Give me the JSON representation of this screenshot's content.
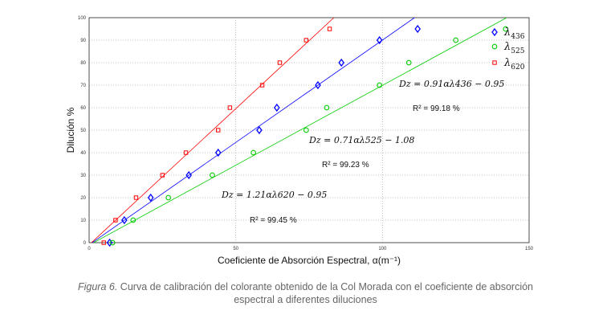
{
  "chart_data": {
    "type": "scatter",
    "xlabel": "Coeficiente de Absorción Espectral, α(m⁻¹)",
    "ylabel": "Dilución %",
    "xlim": [
      0,
      150
    ],
    "ylim": [
      0,
      100
    ],
    "x_ticks": [
      0,
      50,
      100,
      150
    ],
    "y_ticks": [
      0,
      10,
      20,
      30,
      40,
      50,
      60,
      70,
      80,
      90,
      100
    ],
    "grid": true,
    "legend_position": "top-right",
    "series": [
      {
        "name": "λ436",
        "name_main": "λ",
        "name_sub": "436",
        "marker": "diamond",
        "color": "#0000ff",
        "points": [
          [
            7,
            0
          ],
          [
            12,
            10
          ],
          [
            21,
            20
          ],
          [
            34,
            30
          ],
          [
            44,
            40
          ],
          [
            58,
            50
          ],
          [
            64,
            60
          ],
          [
            78,
            70
          ],
          [
            86,
            80
          ],
          [
            99,
            90
          ],
          [
            112,
            95
          ]
        ],
        "fit": {
          "slope": 0.91,
          "intercept": -0.95
        },
        "equation": "Dz = 0.91αλ436 − 0.95",
        "r2": "R² = 99.18 %"
      },
      {
        "name": "λ525",
        "name_main": "λ",
        "name_sub": "525",
        "marker": "circle",
        "color": "#00cc00",
        "points": [
          [
            8,
            0
          ],
          [
            15,
            10
          ],
          [
            27,
            20
          ],
          [
            42,
            30
          ],
          [
            56,
            40
          ],
          [
            74,
            50
          ],
          [
            81,
            60
          ],
          [
            99,
            70
          ],
          [
            109,
            80
          ],
          [
            125,
            90
          ],
          [
            142,
            95
          ]
        ],
        "fit": {
          "slope": 0.71,
          "intercept": -1.08
        },
        "equation": "Dz = 0.71αλ525 − 1.08",
        "r2": "R² = 99.23 %"
      },
      {
        "name": "λ620",
        "name_main": "λ",
        "name_sub": "620",
        "marker": "square",
        "color": "#ff0000",
        "points": [
          [
            5,
            0
          ],
          [
            9,
            10
          ],
          [
            16,
            20
          ],
          [
            25,
            30
          ],
          [
            33,
            40
          ],
          [
            44,
            50
          ],
          [
            48,
            60
          ],
          [
            59,
            70
          ],
          [
            65,
            80
          ],
          [
            74,
            90
          ],
          [
            82,
            95
          ]
        ],
        "fit": {
          "slope": 1.21,
          "intercept": -0.95
        },
        "equation": "Dz = 1.21αλ620 − 0.95",
        "r2": "R² = 99.45 %"
      }
    ]
  },
  "caption": {
    "figure_label": "Figura 6.",
    "line1_text": " Curva de calibración del colorante obtenido de la Col Morada con el coeficiente de absorción",
    "line2_text": "espectral a diferentes diluciones"
  }
}
